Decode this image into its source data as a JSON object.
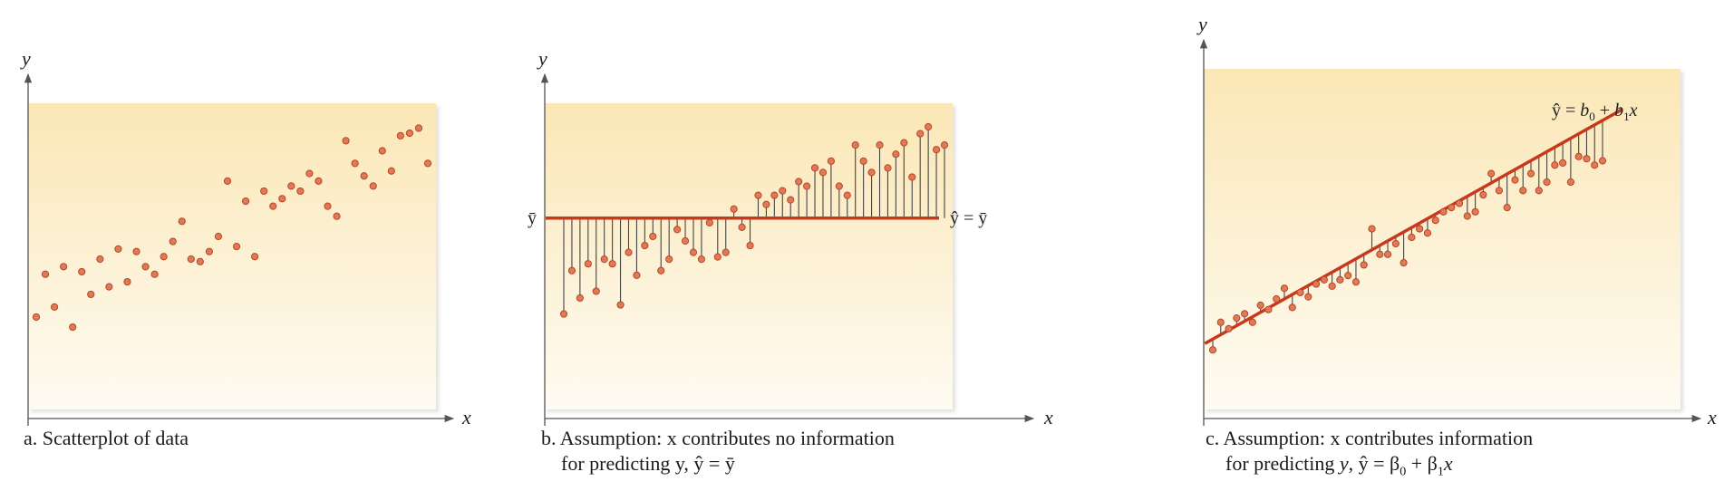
{
  "colors": {
    "panel_top": "#fbe7b6",
    "panel_bottom": "#fefbf2",
    "point": "#e07a54",
    "point_edge": "#b8452a",
    "line": "#c8391c",
    "axis": "#555555",
    "residual": "#444444"
  },
  "chart_data": [
    {
      "type": "scatter",
      "xlabel": "x",
      "ylabel": "y",
      "caption_line1": "a. Scatterplot of data",
      "x": [
        1,
        2,
        3,
        4,
        5,
        6,
        7,
        8,
        9,
        10,
        11,
        12,
        13,
        14,
        15,
        16,
        17,
        18,
        19,
        20,
        21,
        22,
        23,
        24,
        25,
        26,
        27,
        28,
        29,
        30,
        31,
        32,
        33,
        34,
        35,
        36,
        37,
        38,
        39,
        40,
        41,
        42,
        43,
        44
      ],
      "y": [
        18,
        35,
        22,
        38,
        14,
        36,
        27,
        41,
        30,
        45,
        32,
        44,
        38,
        35,
        42,
        48,
        56,
        41,
        40,
        44,
        50,
        72,
        46,
        64,
        42,
        68,
        62,
        65,
        70,
        68,
        75,
        72,
        62,
        58,
        88,
        79,
        74,
        70,
        84,
        76,
        90,
        91,
        93,
        79
      ]
    },
    {
      "type": "scatter",
      "xlabel": "x",
      "ylabel": "y",
      "ybar_label": "ȳ",
      "line_label": "ŷ = ȳ",
      "caption_line1": "b. Assumption: x contributes no information",
      "caption_line2": "for predicting y, ŷ = ȳ",
      "ybar": 60,
      "x": [
        1,
        2,
        3,
        4,
        5,
        6,
        7,
        8,
        9,
        10,
        11,
        12,
        13,
        14,
        15,
        16,
        17,
        18,
        19,
        20,
        21,
        22,
        23,
        24,
        25,
        26,
        27,
        28,
        29,
        30,
        31,
        32,
        33,
        34,
        35,
        36,
        37,
        38,
        39,
        40,
        41,
        42,
        43,
        44,
        45,
        46,
        47,
        48
      ],
      "y": [
        18,
        37,
        25,
        40,
        28,
        42,
        40,
        22,
        45,
        35,
        48,
        52,
        37,
        42,
        55,
        50,
        45,
        42,
        58,
        43,
        45,
        64,
        56,
        48,
        70,
        66,
        70,
        72,
        68,
        76,
        74,
        82,
        80,
        85,
        74,
        70,
        92,
        85,
        80,
        92,
        82,
        88,
        93,
        78,
        97,
        100,
        90,
        92
      ]
    },
    {
      "type": "scatter",
      "xlabel": "x",
      "ylabel": "y",
      "line_label_parts": [
        "ŷ = ",
        "b",
        "0",
        " + ",
        "b",
        "1",
        "x"
      ],
      "caption_line1": "c. Assumption: x contributes information",
      "caption_line2_parts": [
        "for predicting ",
        "y",
        ", ŷ = ",
        "β",
        "0",
        " + ",
        "β",
        "1",
        "x"
      ],
      "fit": {
        "intercept": 8,
        "slope": 2.1
      },
      "x": [
        1,
        2,
        3,
        4,
        5,
        6,
        7,
        8,
        9,
        10,
        11,
        12,
        13,
        14,
        15,
        16,
        17,
        18,
        19,
        20,
        21,
        22,
        23,
        24,
        25,
        26,
        27,
        28,
        29,
        30,
        31,
        32,
        33,
        34,
        35,
        36,
        37,
        38,
        39,
        40,
        41,
        42,
        43,
        44,
        45,
        46,
        47,
        48,
        49,
        50
      ],
      "y": [
        5,
        18,
        15,
        20,
        22,
        18,
        26,
        24,
        29,
        34,
        25,
        32,
        30,
        36,
        38,
        35,
        38,
        40,
        37,
        45,
        62,
        50,
        50,
        55,
        46,
        58,
        62,
        60,
        66,
        70,
        72,
        74,
        68,
        70,
        78,
        88,
        80,
        72,
        85,
        80,
        88,
        80,
        84,
        92,
        93,
        84,
        96,
        95,
        92,
        94
      ]
    }
  ]
}
